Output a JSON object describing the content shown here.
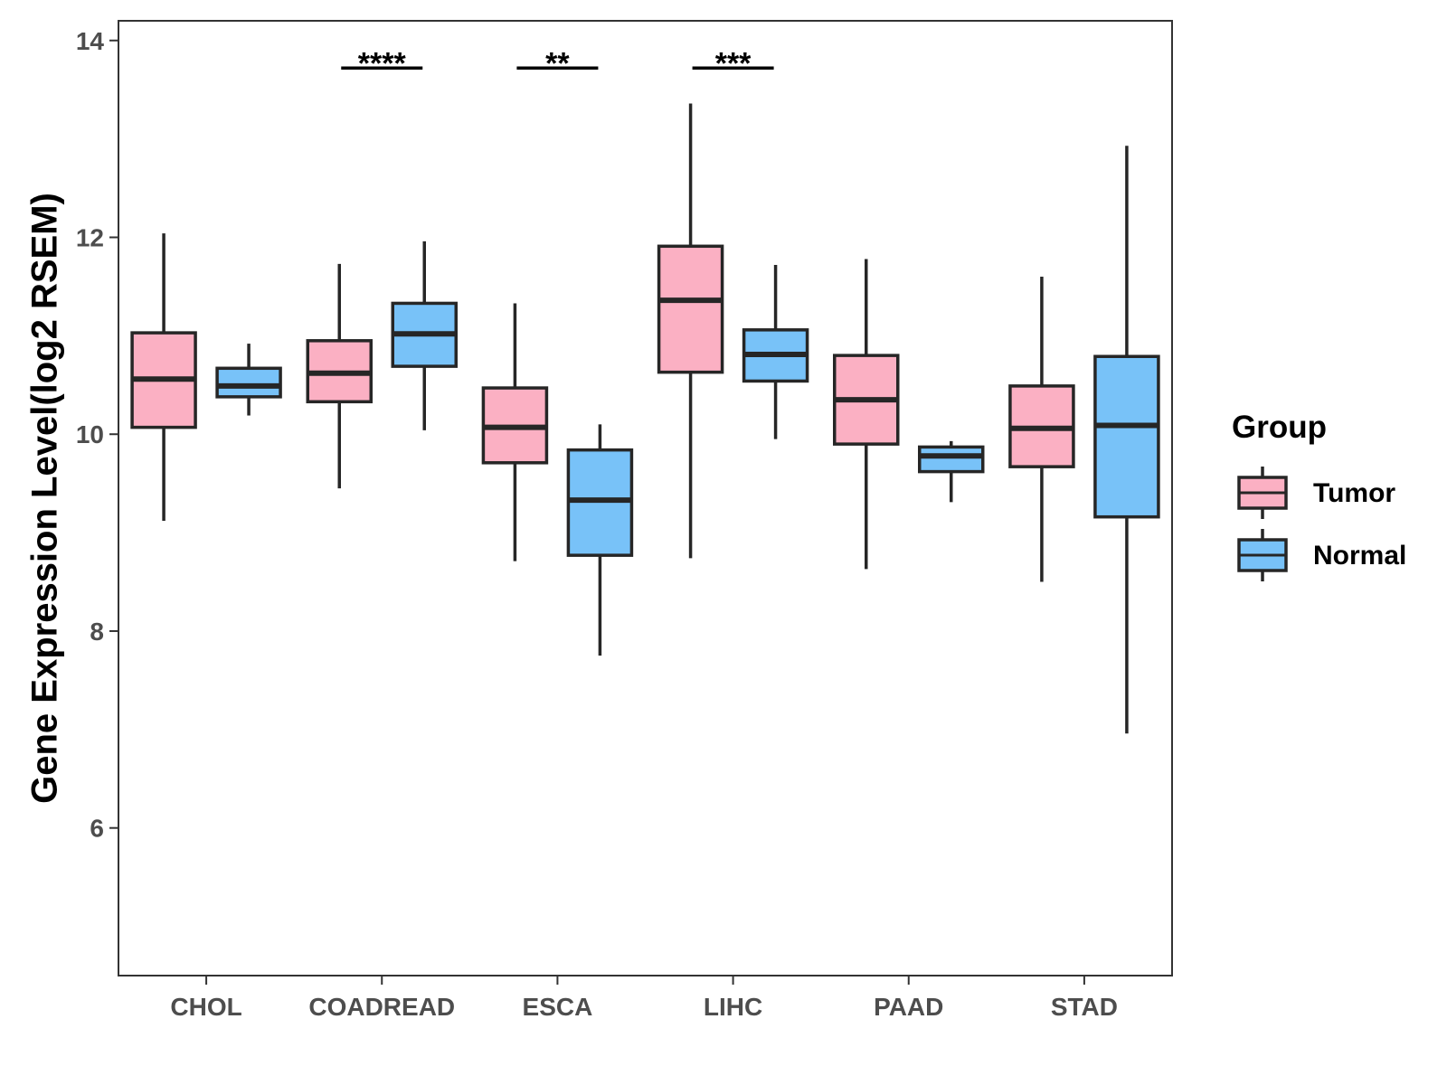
{
  "chart_data": {
    "type": "boxplot",
    "title": "",
    "xlabel": "",
    "ylabel": "Gene Expression Level(log2 RSEM)",
    "ylim": [
      4.5,
      14.2
    ],
    "yticks": [
      6,
      8,
      10,
      12,
      14
    ],
    "categories": [
      "CHOL",
      "COADREAD",
      "ESCA",
      "LIHC",
      "PAAD",
      "STAD"
    ],
    "legend": {
      "title": "Group",
      "position": "right",
      "entries": [
        {
          "name": "Tumor",
          "color": "#FBB0C3"
        },
        {
          "name": "Normal",
          "color": "#78C2F8"
        }
      ]
    },
    "series": [
      {
        "name": "Tumor",
        "color": "#FBB0C3",
        "boxes": [
          {
            "min": 9.12,
            "q1": 10.07,
            "median": 10.56,
            "q3": 11.03,
            "max": 12.04
          },
          {
            "min": 9.45,
            "q1": 10.33,
            "median": 10.62,
            "q3": 10.95,
            "max": 11.73
          },
          {
            "min": 8.71,
            "q1": 9.71,
            "median": 10.07,
            "q3": 10.47,
            "max": 11.33
          },
          {
            "min": 8.74,
            "q1": 10.63,
            "median": 11.36,
            "q3": 11.91,
            "max": 13.36
          },
          {
            "min": 8.63,
            "q1": 9.9,
            "median": 10.35,
            "q3": 10.8,
            "max": 11.78
          },
          {
            "min": 8.5,
            "q1": 9.67,
            "median": 10.06,
            "q3": 10.49,
            "max": 11.6
          }
        ]
      },
      {
        "name": "Normal",
        "color": "#78C2F8",
        "boxes": [
          {
            "min": 10.19,
            "q1": 10.38,
            "median": 10.49,
            "q3": 10.67,
            "max": 10.92
          },
          {
            "min": 10.04,
            "q1": 10.69,
            "median": 11.02,
            "q3": 11.33,
            "max": 11.96
          },
          {
            "min": 7.75,
            "q1": 8.77,
            "median": 9.33,
            "q3": 9.84,
            "max": 10.1
          },
          {
            "min": 9.95,
            "q1": 10.54,
            "median": 10.81,
            "q3": 11.06,
            "max": 11.72
          },
          {
            "min": 9.31,
            "q1": 9.62,
            "median": 9.78,
            "q3": 9.87,
            "max": 9.93
          },
          {
            "min": 6.96,
            "q1": 9.16,
            "median": 10.09,
            "q3": 10.79,
            "max": 12.93
          }
        ]
      }
    ],
    "significance": [
      {
        "category": "COADREAD",
        "label": "****",
        "y": 13.72
      },
      {
        "category": "ESCA",
        "label": "**",
        "y": 13.72
      },
      {
        "category": "LIHC",
        "label": "***",
        "y": 13.72
      }
    ]
  }
}
